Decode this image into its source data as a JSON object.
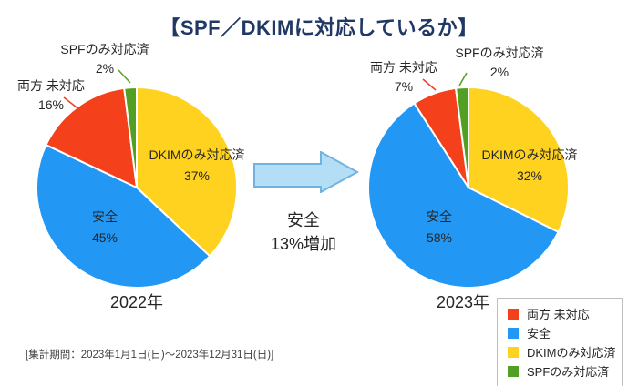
{
  "title": "【SPF／DKIMに対応しているか】",
  "colors": {
    "title": "#1F3864",
    "red": "#F4411C",
    "blue": "#2297F3",
    "yellow": "#FFD21F",
    "green": "#52A023",
    "leader_red": "#E8432C",
    "leader_green": "#5AA22B",
    "arrow_fill": "#B4DDF6",
    "arrow_stroke": "#70B3E3",
    "legend_border": "#BFBFBF"
  },
  "annotation": {
    "line1": "安全",
    "line2": "13%増加"
  },
  "footnote": "[集計期間：2023年1月1日(日)～2023年12月31日(日)]",
  "legend": {
    "position": "bottom-right",
    "items": [
      {
        "label": "両方 未対応",
        "color": "#F4411C"
      },
      {
        "label": "安全",
        "color": "#2297F3"
      },
      {
        "label": "DKIMのみ対応済",
        "color": "#FFD21F"
      },
      {
        "label": "SPFのみ対応済",
        "color": "#52A023"
      }
    ]
  },
  "chart_data": [
    {
      "type": "pie",
      "year_label": "2022年",
      "start": "top, clockwise",
      "slices": [
        {
          "key": "dkim_only",
          "label": "DKIMのみ対応済",
          "value": 37,
          "pct_label": "37%",
          "color": "#FFD21F",
          "label_position": "inside"
        },
        {
          "key": "safe",
          "label": "安全",
          "value": 45,
          "pct_label": "45%",
          "color": "#2297F3",
          "label_position": "inside"
        },
        {
          "key": "both_unsupported",
          "label": "両方 未対応",
          "value": 16,
          "pct_label": "16%",
          "color": "#F4411C",
          "label_position": "outside"
        },
        {
          "key": "spf_only",
          "label": "SPFのみ対応済",
          "value": 2,
          "pct_label": "2%",
          "color": "#52A023",
          "label_position": "outside"
        }
      ]
    },
    {
      "type": "pie",
      "year_label": "2023年",
      "start": "top, clockwise",
      "slices": [
        {
          "key": "dkim_only",
          "label": "DKIMのみ対応済",
          "value": 32,
          "pct_label": "32%",
          "color": "#FFD21F",
          "label_position": "inside"
        },
        {
          "key": "safe",
          "label": "安全",
          "value": 58,
          "pct_label": "58%",
          "color": "#2297F3",
          "label_position": "inside"
        },
        {
          "key": "both_unsupported",
          "label": "両方 未対応",
          "value": 7,
          "pct_label": "7%",
          "color": "#F4411C",
          "label_position": "outside"
        },
        {
          "key": "spf_only",
          "label": "SPFのみ対応済",
          "value": 2,
          "pct_label": "2%",
          "color": "#52A023",
          "label_position": "outside"
        }
      ]
    }
  ]
}
